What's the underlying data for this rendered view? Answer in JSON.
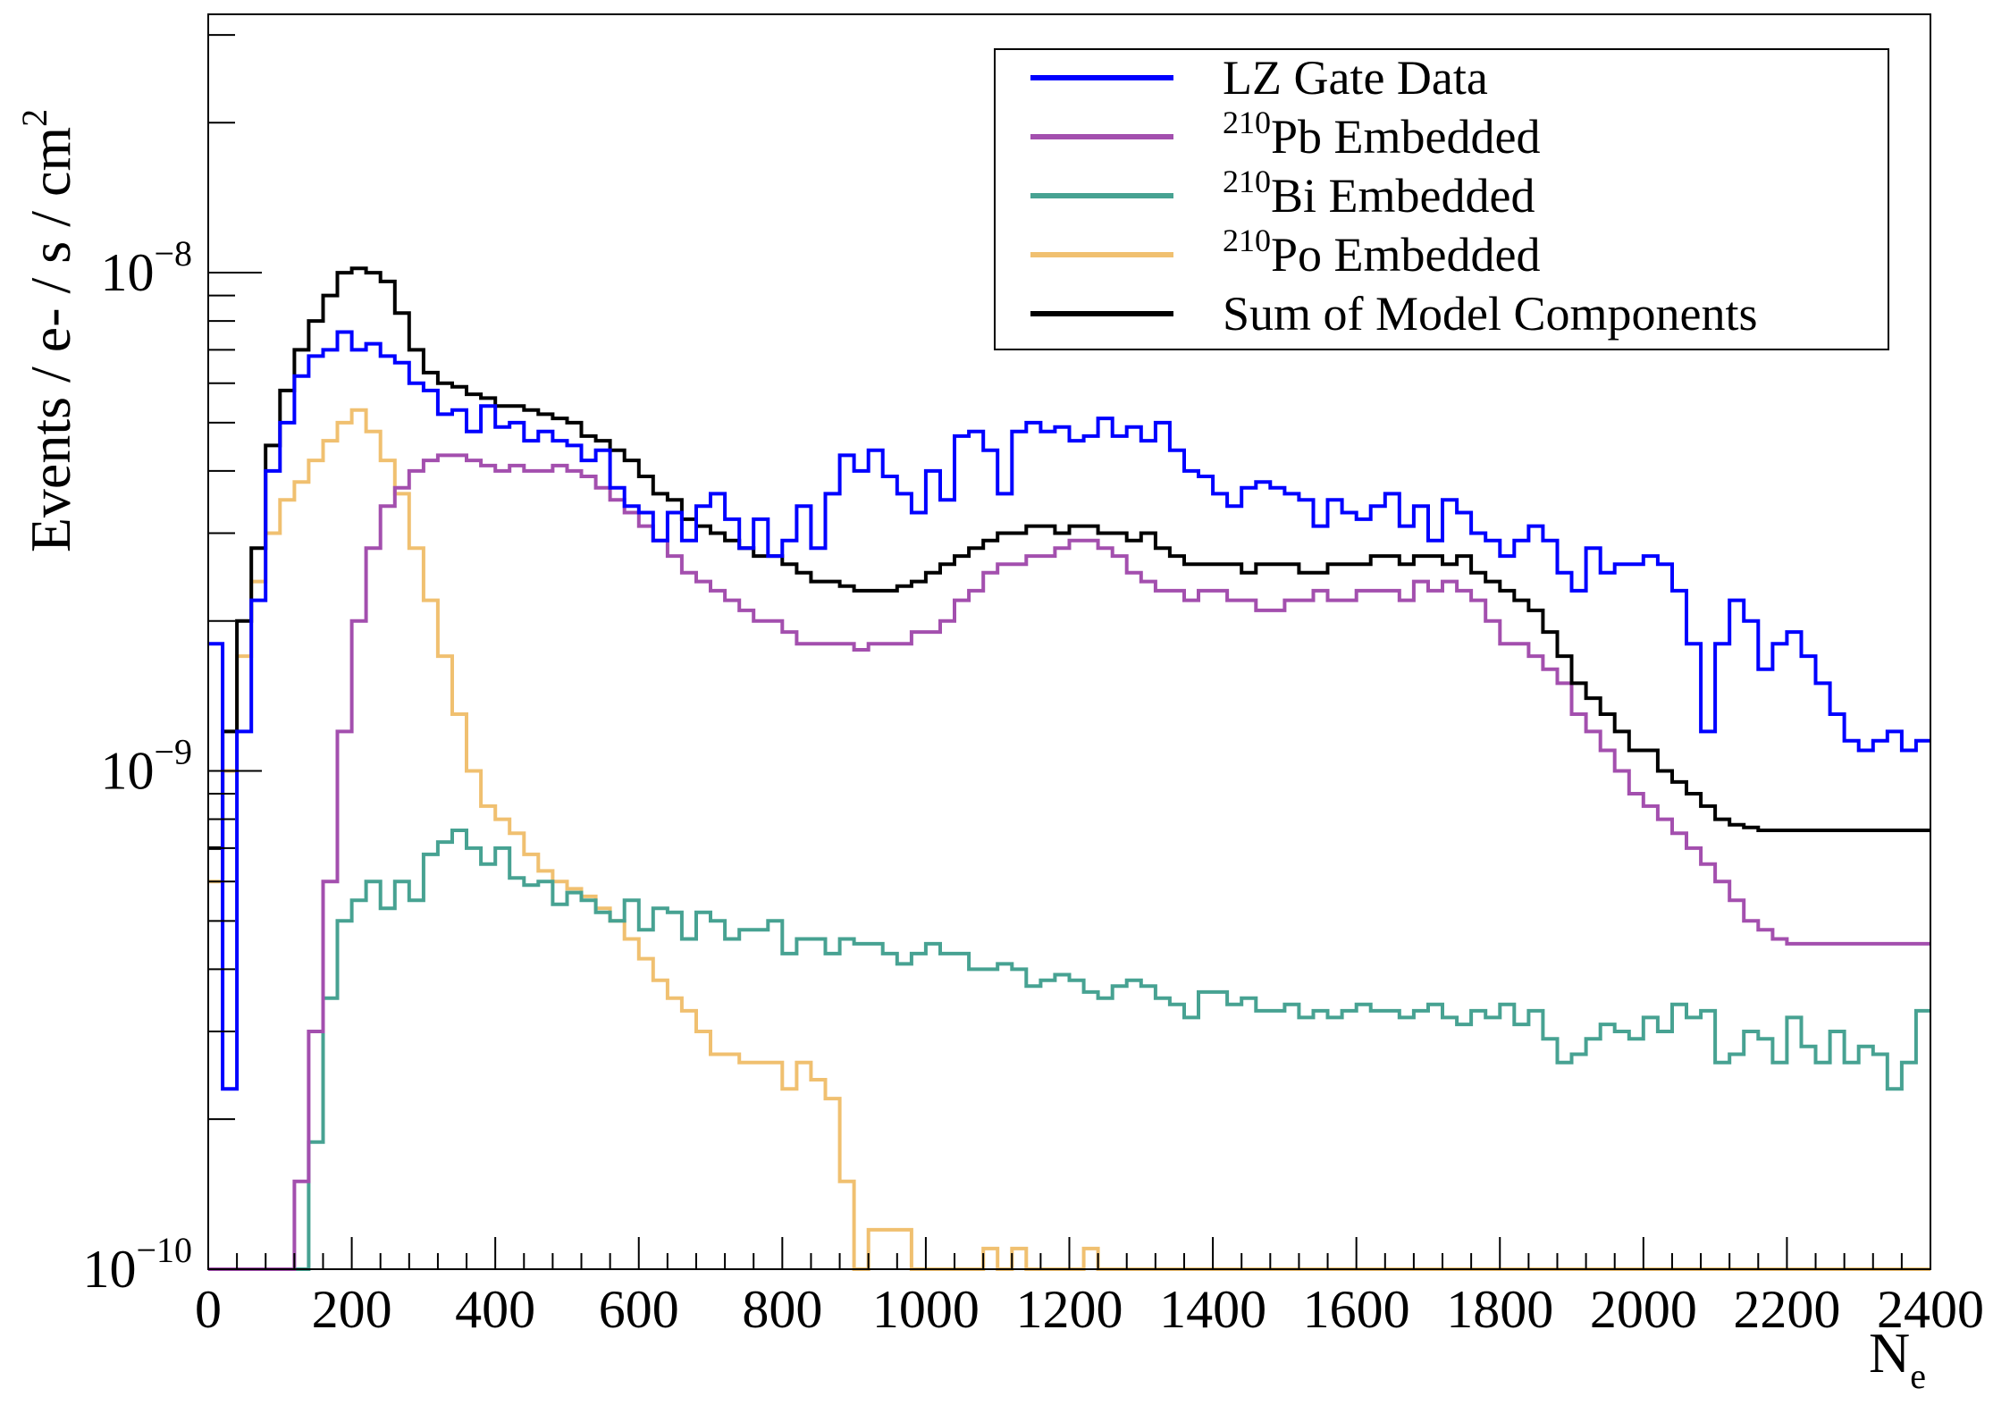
{
  "chart_data": {
    "type": "histogram-step",
    "title": "",
    "xlabel_base": "N",
    "xlabel_sub": "e",
    "ylabel": "Events / e- / s / cm",
    "ylabel_sup": "2",
    "xlim": [
      0,
      2400
    ],
    "ylim": [
      1e-10,
      3.3e-08
    ],
    "yscale": "log",
    "bin_width": 20,
    "x_ticks": [
      "0",
      "200",
      "400",
      "600",
      "800",
      "1000",
      "1200",
      "1400",
      "1600",
      "1800",
      "2000",
      "2200",
      "2400"
    ],
    "y_ticks": [
      {
        "value": 1e-10,
        "base": "10",
        "exp": "−10"
      },
      {
        "value": 1e-09,
        "base": "10",
        "exp": "−9"
      },
      {
        "value": 1e-08,
        "base": "10",
        "exp": "−8"
      }
    ],
    "legend_position": "top-right",
    "series": [
      {
        "name": "LZ Gate Data",
        "name_sup": "",
        "name_main": "LZ Gate Data",
        "color": "#0000ff",
        "values": [
          1.8e-09,
          2.3e-10,
          1.2e-09,
          2.2e-09,
          4e-09,
          5e-09,
          6.2e-09,
          6.8e-09,
          7e-09,
          7.6e-09,
          7e-09,
          7.2e-09,
          6.8e-09,
          6.6e-09,
          6e-09,
          5.8e-09,
          5.2e-09,
          5.3e-09,
          4.8e-09,
          5.4e-09,
          4.9e-09,
          5e-09,
          4.6e-09,
          4.8e-09,
          4.6e-09,
          4.5e-09,
          4.2e-09,
          4.4e-09,
          3.7e-09,
          3.4e-09,
          3.3e-09,
          2.9e-09,
          3.3e-09,
          2.9e-09,
          3.4e-09,
          3.6e-09,
          3.2e-09,
          2.8e-09,
          3.2e-09,
          2.7e-09,
          2.9e-09,
          3.4e-09,
          2.8e-09,
          3.6e-09,
          4.3e-09,
          4e-09,
          4.4e-09,
          3.9e-09,
          3.6e-09,
          3.3e-09,
          4e-09,
          3.5e-09,
          4.7e-09,
          4.8e-09,
          4.4e-09,
          3.6e-09,
          4.8e-09,
          5e-09,
          4.8e-09,
          4.9e-09,
          4.6e-09,
          4.7e-09,
          5.1e-09,
          4.7e-09,
          4.9e-09,
          4.6e-09,
          5e-09,
          4.4e-09,
          4e-09,
          3.9e-09,
          3.6e-09,
          3.4e-09,
          3.7e-09,
          3.8e-09,
          3.7e-09,
          3.6e-09,
          3.5e-09,
          3.1e-09,
          3.5e-09,
          3.3e-09,
          3.2e-09,
          3.4e-09,
          3.6e-09,
          3.1e-09,
          3.4e-09,
          2.9e-09,
          3.5e-09,
          3.3e-09,
          3e-09,
          2.9e-09,
          2.7e-09,
          2.9e-09,
          3.1e-09,
          2.9e-09,
          2.5e-09,
          2.3e-09,
          2.8e-09,
          2.5e-09,
          2.6e-09,
          2.6e-09,
          2.7e-09,
          2.6e-09,
          2.3e-09,
          1.8e-09,
          1.2e-09,
          1.8e-09,
          2.2e-09,
          2e-09,
          1.6e-09,
          1.8e-09,
          1.9e-09,
          1.7e-09,
          1.5e-09,
          1.3e-09,
          1.15e-09,
          1.1e-09,
          1.15e-09,
          1.2e-09,
          1.1e-09,
          1.15e-09
        ]
      },
      {
        "name": "210Pb Embedded",
        "name_sup": "210",
        "name_main": "Pb Embedded",
        "color": "#a34fae",
        "values": [
          1e-10,
          1e-10,
          1e-10,
          1e-10,
          1e-10,
          1e-10,
          1.5e-10,
          3e-10,
          6e-10,
          1.2e-09,
          2e-09,
          2.8e-09,
          3.4e-09,
          3.7e-09,
          4e-09,
          4.2e-09,
          4.3e-09,
          4.3e-09,
          4.2e-09,
          4.1e-09,
          4e-09,
          4.1e-09,
          4e-09,
          4e-09,
          4.1e-09,
          4e-09,
          3.9e-09,
          3.7e-09,
          3.5e-09,
          3.3e-09,
          3.1e-09,
          2.9e-09,
          2.7e-09,
          2.5e-09,
          2.4e-09,
          2.3e-09,
          2.2e-09,
          2.1e-09,
          2e-09,
          2e-09,
          1.9e-09,
          1.8e-09,
          1.8e-09,
          1.8e-09,
          1.8e-09,
          1.75e-09,
          1.8e-09,
          1.8e-09,
          1.8e-09,
          1.9e-09,
          1.9e-09,
          2e-09,
          2.2e-09,
          2.3e-09,
          2.5e-09,
          2.6e-09,
          2.6e-09,
          2.7e-09,
          2.7e-09,
          2.8e-09,
          2.9e-09,
          2.9e-09,
          2.8e-09,
          2.7e-09,
          2.5e-09,
          2.4e-09,
          2.3e-09,
          2.3e-09,
          2.2e-09,
          2.3e-09,
          2.3e-09,
          2.2e-09,
          2.2e-09,
          2.1e-09,
          2.1e-09,
          2.2e-09,
          2.2e-09,
          2.3e-09,
          2.2e-09,
          2.2e-09,
          2.3e-09,
          2.3e-09,
          2.3e-09,
          2.2e-09,
          2.4e-09,
          2.3e-09,
          2.4e-09,
          2.3e-09,
          2.2e-09,
          2e-09,
          1.8e-09,
          1.8e-09,
          1.7e-09,
          1.6e-09,
          1.5e-09,
          1.3e-09,
          1.2e-09,
          1.1e-09,
          1e-09,
          9e-10,
          8.5e-10,
          8e-10,
          7.5e-10,
          7e-10,
          6.5e-10,
          6e-10,
          5.5e-10,
          5e-10,
          4.8e-10,
          4.6e-10,
          4.5e-10,
          4.5e-10,
          4.5e-10,
          4.5e-10,
          4.5e-10,
          4.5e-10,
          4.5e-10,
          4.5e-10,
          4.5e-10,
          4.5e-10
        ]
      },
      {
        "name": "210Bi Embedded",
        "name_sup": "210",
        "name_main": "Bi Embedded",
        "color": "#47a292",
        "values": [
          1e-10,
          1e-10,
          1e-10,
          1e-10,
          1e-10,
          1e-10,
          1e-10,
          1.8e-10,
          3.5e-10,
          5e-10,
          5.5e-10,
          6e-10,
          5.3e-10,
          6e-10,
          5.5e-10,
          6.8e-10,
          7.2e-10,
          7.6e-10,
          7e-10,
          6.5e-10,
          7e-10,
          6.1e-10,
          5.9e-10,
          6e-10,
          5.4e-10,
          5.7e-10,
          5.5e-10,
          5.2e-10,
          5e-10,
          5.5e-10,
          4.8e-10,
          5.3e-10,
          5.2e-10,
          4.6e-10,
          5.2e-10,
          5e-10,
          4.6e-10,
          4.8e-10,
          4.8e-10,
          5e-10,
          4.3e-10,
          4.6e-10,
          4.6e-10,
          4.3e-10,
          4.6e-10,
          4.5e-10,
          4.5e-10,
          4.3e-10,
          4.1e-10,
          4.3e-10,
          4.5e-10,
          4.3e-10,
          4.3e-10,
          4e-10,
          4e-10,
          4.1e-10,
          4e-10,
          3.7e-10,
          3.8e-10,
          3.9e-10,
          3.8e-10,
          3.6e-10,
          3.5e-10,
          3.7e-10,
          3.8e-10,
          3.7e-10,
          3.5e-10,
          3.4e-10,
          3.2e-10,
          3.6e-10,
          3.6e-10,
          3.4e-10,
          3.5e-10,
          3.3e-10,
          3.3e-10,
          3.4e-10,
          3.2e-10,
          3.3e-10,
          3.2e-10,
          3.3e-10,
          3.4e-10,
          3.3e-10,
          3.3e-10,
          3.2e-10,
          3.3e-10,
          3.4e-10,
          3.2e-10,
          3.1e-10,
          3.3e-10,
          3.2e-10,
          3.4e-10,
          3.1e-10,
          3.3e-10,
          2.9e-10,
          2.6e-10,
          2.7e-10,
          2.9e-10,
          3.1e-10,
          3e-10,
          2.9e-10,
          3.2e-10,
          3e-10,
          3.4e-10,
          3.2e-10,
          3.3e-10,
          2.6e-10,
          2.7e-10,
          3e-10,
          2.9e-10,
          2.6e-10,
          3.2e-10,
          2.8e-10,
          2.6e-10,
          3e-10,
          2.6e-10,
          2.8e-10,
          2.7e-10,
          2.3e-10,
          2.6e-10,
          3.3e-10
        ]
      },
      {
        "name": "210Po Embedded",
        "name_sup": "210",
        "name_main": "Po Embedded",
        "color": "#f0c070",
        "values": [
          6e-10,
          1e-09,
          1.7e-09,
          2.4e-09,
          3e-09,
          3.5e-09,
          3.8e-09,
          4.2e-09,
          4.6e-09,
          5e-09,
          5.3e-09,
          4.8e-09,
          4.2e-09,
          3.6e-09,
          2.8e-09,
          2.2e-09,
          1.7e-09,
          1.3e-09,
          1e-09,
          8.5e-10,
          8e-10,
          7.5e-10,
          6.8e-10,
          6.3e-10,
          6e-10,
          5.8e-10,
          5.6e-10,
          5.3e-10,
          5e-10,
          4.6e-10,
          4.2e-10,
          3.8e-10,
          3.5e-10,
          3.3e-10,
          3e-10,
          2.7e-10,
          2.7e-10,
          2.6e-10,
          2.6e-10,
          2.6e-10,
          2.3e-10,
          2.6e-10,
          2.4e-10,
          2.2e-10,
          1.5e-10,
          1e-10,
          1.2e-10,
          1.2e-10,
          1.2e-10,
          1e-10,
          1e-10,
          1e-10,
          1e-10,
          1e-10,
          1.1e-10,
          1e-10,
          1.1e-10,
          1e-10,
          1e-10,
          1e-10,
          1e-10,
          1.1e-10,
          1e-10,
          1e-10,
          1e-10,
          1e-10,
          1e-10,
          1e-10,
          1e-10,
          1e-10,
          1e-10,
          1e-10,
          1e-10,
          1e-10,
          1e-10,
          1e-10,
          1e-10,
          1e-10,
          1e-10,
          1e-10,
          1e-10,
          1e-10,
          1e-10,
          1e-10,
          1e-10,
          1e-10,
          1e-10,
          1e-10,
          1e-10,
          1e-10,
          1e-10,
          1e-10,
          1e-10,
          1e-10,
          1e-10,
          1e-10,
          1e-10,
          1e-10,
          1e-10,
          1e-10,
          1e-10,
          1e-10,
          1e-10,
          1e-10,
          1e-10,
          1e-10,
          1e-10,
          1e-10,
          1e-10,
          1e-10,
          1e-10,
          1e-10,
          1e-10,
          1e-10,
          1e-10,
          1e-10,
          1e-10,
          1e-10,
          1e-10,
          1e-10
        ]
      },
      {
        "name": "Sum of Model Components",
        "name_sup": "",
        "name_main": "Sum of Model Components",
        "color": "#000000",
        "values": [
          7e-10,
          1.2e-09,
          2e-09,
          2.8e-09,
          4.5e-09,
          5.8e-09,
          7e-09,
          8e-09,
          9e-09,
          1e-08,
          1.02e-08,
          1e-08,
          9.6e-09,
          8.3e-09,
          7e-09,
          6.3e-09,
          6e-09,
          5.9e-09,
          5.7e-09,
          5.6e-09,
          5.4e-09,
          5.4e-09,
          5.3e-09,
          5.2e-09,
          5.1e-09,
          5e-09,
          4.7e-09,
          4.6e-09,
          4.4e-09,
          4.2e-09,
          3.9e-09,
          3.6e-09,
          3.5e-09,
          3.2e-09,
          3.1e-09,
          3e-09,
          2.9e-09,
          2.8e-09,
          2.7e-09,
          2.7e-09,
          2.6e-09,
          2.5e-09,
          2.4e-09,
          2.4e-09,
          2.35e-09,
          2.3e-09,
          2.3e-09,
          2.3e-09,
          2.35e-09,
          2.4e-09,
          2.5e-09,
          2.6e-09,
          2.7e-09,
          2.8e-09,
          2.9e-09,
          3e-09,
          3e-09,
          3.1e-09,
          3.1e-09,
          3e-09,
          3.1e-09,
          3.1e-09,
          3e-09,
          3e-09,
          2.9e-09,
          3e-09,
          2.8e-09,
          2.7e-09,
          2.6e-09,
          2.6e-09,
          2.6e-09,
          2.6e-09,
          2.5e-09,
          2.6e-09,
          2.6e-09,
          2.6e-09,
          2.5e-09,
          2.5e-09,
          2.6e-09,
          2.6e-09,
          2.6e-09,
          2.7e-09,
          2.7e-09,
          2.6e-09,
          2.7e-09,
          2.7e-09,
          2.6e-09,
          2.7e-09,
          2.5e-09,
          2.4e-09,
          2.3e-09,
          2.2e-09,
          2.1e-09,
          1.9e-09,
          1.7e-09,
          1.5e-09,
          1.4e-09,
          1.3e-09,
          1.2e-09,
          1.1e-09,
          1.1e-09,
          1e-09,
          9.5e-10,
          9e-10,
          8.5e-10,
          8e-10,
          7.8e-10,
          7.7e-10,
          7.6e-10,
          7.6e-10,
          7.6e-10,
          7.6e-10,
          7.6e-10,
          7.6e-10,
          7.6e-10,
          7.6e-10,
          7.6e-10,
          7.6e-10,
          7.6e-10,
          7.6e-10
        ]
      }
    ]
  }
}
